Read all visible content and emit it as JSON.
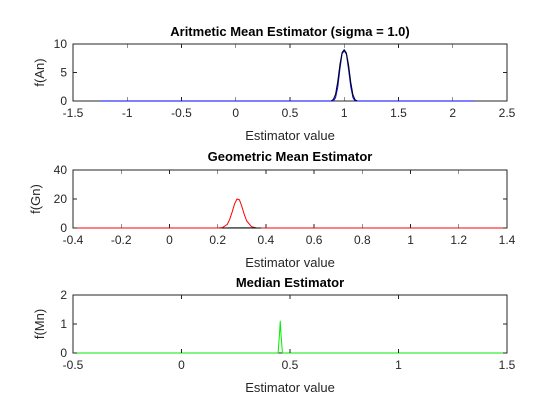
{
  "chart_data": [
    {
      "type": "line",
      "title": "Aritmetic Mean Estimator (sigma = 1.0)",
      "xlabel": "Estimator value",
      "ylabel": "f(An)",
      "xlim": [
        -1.5,
        2.5
      ],
      "ylim": [
        0,
        10
      ],
      "xticks": [
        "-1.5",
        "-1",
        "-0.5",
        "0",
        "0.5",
        "1",
        "1.5",
        "2",
        "2.5"
      ],
      "yticks": [
        "0",
        "5",
        "10"
      ],
      "grid": false,
      "series": [
        {
          "color": "#0000ff",
          "x": [
            -1.25,
            -0.5,
            0,
            0.5,
            0.9,
            0.92,
            0.94,
            0.96,
            0.98,
            1.0,
            1.02,
            1.04,
            1.06,
            1.08,
            1.1,
            1.5,
            2.2
          ],
          "y": [
            0,
            0,
            0,
            0,
            0,
            0.6,
            2.4,
            5.6,
            8.3,
            8.8,
            8.2,
            5.5,
            2.5,
            0.6,
            0,
            0,
            0
          ]
        },
        {
          "color": "#000000",
          "x": [
            0.88,
            0.9,
            0.92,
            0.94,
            0.96,
            0.98,
            1.0,
            1.02,
            1.04,
            1.06,
            1.08,
            1.1,
            1.12
          ],
          "y": [
            0,
            0.3,
            1.2,
            3.4,
            6.4,
            8.5,
            9.0,
            8.4,
            6.3,
            3.3,
            1.1,
            0.2,
            0
          ]
        }
      ]
    },
    {
      "type": "line",
      "title": "Geometric Mean Estimator",
      "xlabel": "Estimator value",
      "ylabel": "f(Gn)",
      "xlim": [
        -0.4,
        1.4
      ],
      "ylim": [
        0,
        40
      ],
      "xticks": [
        "-0.4",
        "-0.2",
        "0",
        "0.2",
        "0.4",
        "0.6",
        "0.8",
        "1",
        "1.2",
        "1.4"
      ],
      "yticks": [
        "0",
        "20",
        "40"
      ],
      "grid": false,
      "series": [
        {
          "color": "#ff0000",
          "x": [
            -0.4,
            0,
            0.2,
            0.22,
            0.24,
            0.25,
            0.26,
            0.27,
            0.28,
            0.29,
            0.3,
            0.31,
            0.32,
            0.34,
            0.36,
            0.5,
            1.4
          ],
          "y": [
            0,
            0,
            0,
            0.3,
            2.5,
            6,
            11,
            16.5,
            20,
            19.5,
            15,
            9.5,
            5,
            1,
            0,
            0,
            0
          ]
        },
        {
          "color": "#000000",
          "x": [
            0.22,
            0.26,
            0.3,
            0.34,
            0.38
          ],
          "y": [
            0,
            0.05,
            0.1,
            0.05,
            0
          ]
        }
      ]
    },
    {
      "type": "line",
      "title": "Median Estimator",
      "xlabel": "Estimator value",
      "ylabel": "f(Mn)",
      "xlim": [
        -0.5,
        1.5
      ],
      "ylim": [
        0,
        2
      ],
      "xticks": [
        "-0.5",
        "0",
        "0.5",
        "1",
        "1.5"
      ],
      "yticks": [
        "0",
        "1",
        "2"
      ],
      "grid": false,
      "series": [
        {
          "color": "#00ee00",
          "x": [
            -0.5,
            0.43,
            0.445,
            0.452,
            0.455,
            0.458,
            0.465,
            0.48,
            1.5
          ],
          "y": [
            0,
            0,
            0,
            0.7,
            1.1,
            0.7,
            0,
            0,
            0
          ]
        }
      ]
    }
  ]
}
